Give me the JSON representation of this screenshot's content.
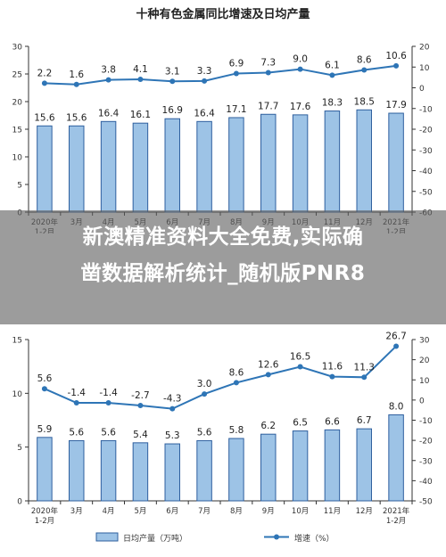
{
  "chart_data": [
    {
      "type": "bar+line",
      "title": "十种有色金属同比增速及日均产量",
      "categories": [
        "2020年\n1-2月",
        "3月",
        "4月",
        "5月",
        "6月",
        "7月",
        "8月",
        "9月",
        "10月",
        "11月",
        "12月",
        "2021年\n1-2月"
      ],
      "series": [
        {
          "kind": "bar",
          "axis": "left",
          "values": [
            15.6,
            15.6,
            16.4,
            16.1,
            16.9,
            16.4,
            17.1,
            17.7,
            17.6,
            18.3,
            18.5,
            17.9
          ]
        },
        {
          "kind": "line",
          "axis": "right",
          "values": [
            2.2,
            1.6,
            3.8,
            4.1,
            3.1,
            3.3,
            6.9,
            7.3,
            9.0,
            6.1,
            8.6,
            10.6
          ]
        }
      ],
      "ylim_left": [
        0,
        30
      ],
      "yticks_left": [
        0,
        5,
        10,
        15,
        20,
        25,
        30
      ],
      "ylim_right": [
        -60,
        20
      ],
      "yticks_right": [
        -60,
        -50,
        -40,
        -30,
        -20,
        -10,
        0,
        10,
        20
      ]
    },
    {
      "type": "bar+line",
      "title": "",
      "categories": [
        "2020年\n1-2月",
        "3月",
        "4月",
        "5月",
        "6月",
        "7月",
        "8月",
        "9月",
        "10月",
        "11月",
        "12月",
        "2021年\n1-2月"
      ],
      "series": [
        {
          "kind": "bar",
          "axis": "left",
          "name": "日均产量（万吨）",
          "values": [
            5.9,
            5.6,
            5.6,
            5.4,
            5.3,
            5.6,
            5.8,
            6.2,
            6.5,
            6.6,
            6.7,
            8.0
          ]
        },
        {
          "kind": "line",
          "axis": "right",
          "name": "增速（%）",
          "values": [
            5.6,
            -1.4,
            -1.4,
            -2.7,
            -4.3,
            3.0,
            8.6,
            12.6,
            16.5,
            11.6,
            11.3,
            26.7
          ]
        }
      ],
      "ylim_left": [
        0,
        15
      ],
      "yticks_left": [
        0,
        5,
        10,
        15
      ],
      "ylim_right": [
        -50,
        30
      ],
      "yticks_right": [
        -50,
        -40,
        -30,
        -20,
        -10,
        0,
        10,
        20,
        30
      ]
    }
  ],
  "overlay": {
    "line1": "新澳精准资料大全免费,实际确",
    "line2": "凿数据解析统计_随机版PNR8"
  },
  "colors": {
    "bar_fill": "#9dc3e6",
    "bar_stroke": "#2e5f9e",
    "line": "#2e75b6",
    "axis": "#333333"
  }
}
